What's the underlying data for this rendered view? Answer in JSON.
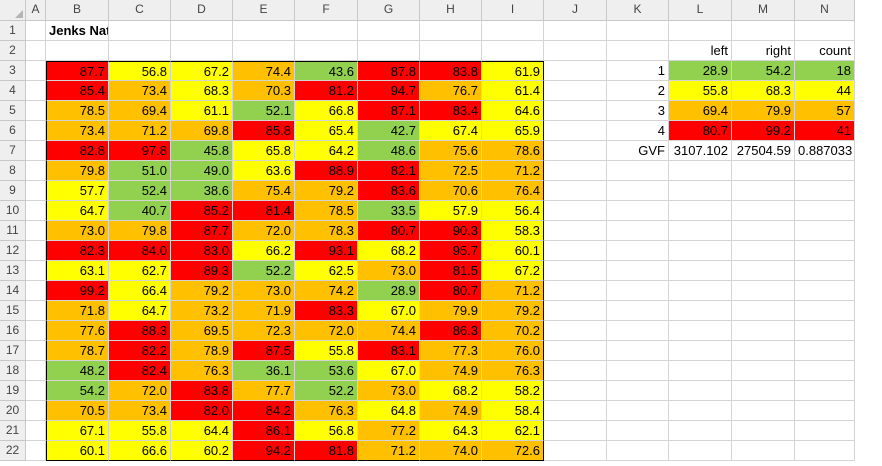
{
  "columns": [
    "A",
    "B",
    "C",
    "D",
    "E",
    "F",
    "G",
    "H",
    "I",
    "J",
    "K",
    "L",
    "M",
    "N"
  ],
  "rows": [
    "1",
    "2",
    "3",
    "4",
    "5",
    "6",
    "7",
    "8",
    "9",
    "10",
    "11",
    "12",
    "13",
    "14",
    "15",
    "16",
    "17",
    "18",
    "19",
    "20",
    "21",
    "22"
  ],
  "title": "Jenks Natural Breaks Optimization",
  "data_table": {
    "values": [
      [
        "87.7",
        "56.8",
        "67.2",
        "74.4",
        "43.6",
        "87.8",
        "83.8",
        "61.9"
      ],
      [
        "85.4",
        "73.4",
        "68.3",
        "70.3",
        "81.2",
        "94.7",
        "76.7",
        "61.4"
      ],
      [
        "78.5",
        "69.4",
        "61.1",
        "52.1",
        "66.8",
        "87.1",
        "83.4",
        "64.6"
      ],
      [
        "73.4",
        "71.2",
        "69.8",
        "85.8",
        "65.4",
        "42.7",
        "67.4",
        "65.9"
      ],
      [
        "82.8",
        "97.8",
        "45.8",
        "65.8",
        "64.2",
        "48.6",
        "75.6",
        "78.6"
      ],
      [
        "79.8",
        "51.0",
        "49.0",
        "63.6",
        "88.9",
        "82.1",
        "72.5",
        "71.2"
      ],
      [
        "57.7",
        "52.4",
        "38.6",
        "75.4",
        "79.2",
        "83.6",
        "70.6",
        "76.4"
      ],
      [
        "64.7",
        "40.7",
        "85.2",
        "81.4",
        "78.5",
        "33.5",
        "57.9",
        "56.4"
      ],
      [
        "73.0",
        "79.8",
        "87.7",
        "72.0",
        "78.3",
        "80.7",
        "90.3",
        "58.3"
      ],
      [
        "82.3",
        "84.0",
        "83.0",
        "66.2",
        "93.1",
        "68.2",
        "95.7",
        "60.1"
      ],
      [
        "63.1",
        "62.7",
        "89.3",
        "52.2",
        "62.5",
        "73.0",
        "81.5",
        "67.2"
      ],
      [
        "99.2",
        "66.4",
        "79.2",
        "73.0",
        "74.2",
        "28.9",
        "80.7",
        "71.2"
      ],
      [
        "71.8",
        "64.7",
        "73.2",
        "71.9",
        "83.3",
        "67.0",
        "79.9",
        "79.2"
      ],
      [
        "77.6",
        "88.3",
        "69.5",
        "72.3",
        "72.0",
        "74.4",
        "86.3",
        "70.2"
      ],
      [
        "78.7",
        "82.2",
        "78.9",
        "87.5",
        "55.8",
        "83.1",
        "77.3",
        "76.0"
      ],
      [
        "48.2",
        "82.4",
        "76.3",
        "36.1",
        "53.6",
        "67.0",
        "74.9",
        "76.3"
      ],
      [
        "54.2",
        "72.0",
        "83.8",
        "77.7",
        "52.2",
        "73.0",
        "68.2",
        "58.2"
      ],
      [
        "70.5",
        "73.4",
        "82.0",
        "84.2",
        "76.3",
        "64.8",
        "74.9",
        "58.4"
      ],
      [
        "67.1",
        "55.8",
        "64.4",
        "86.1",
        "56.8",
        "77.2",
        "64.3",
        "62.1"
      ],
      [
        "60.1",
        "66.6",
        "60.2",
        "94.2",
        "81.8",
        "71.2",
        "74.0",
        "72.6"
      ]
    ]
  },
  "breaks_table": {
    "headers": [
      "left",
      "right",
      "count"
    ],
    "rows": [
      {
        "id": "1",
        "left": "28.9",
        "right": "54.2",
        "count": "18",
        "color": "#92d050"
      },
      {
        "id": "2",
        "left": "55.8",
        "right": "68.3",
        "count": "44",
        "color": "#ffff00"
      },
      {
        "id": "3",
        "left": "69.4",
        "right": "79.9",
        "count": "57",
        "color": "#ffc000"
      },
      {
        "id": "4",
        "left": "80.7",
        "right": "99.2",
        "count": "41",
        "color": "#ff0000"
      }
    ],
    "gvf": {
      "label": "GVF",
      "left": "3107.102",
      "right": "27504.59",
      "count": "0.887033"
    }
  }
}
